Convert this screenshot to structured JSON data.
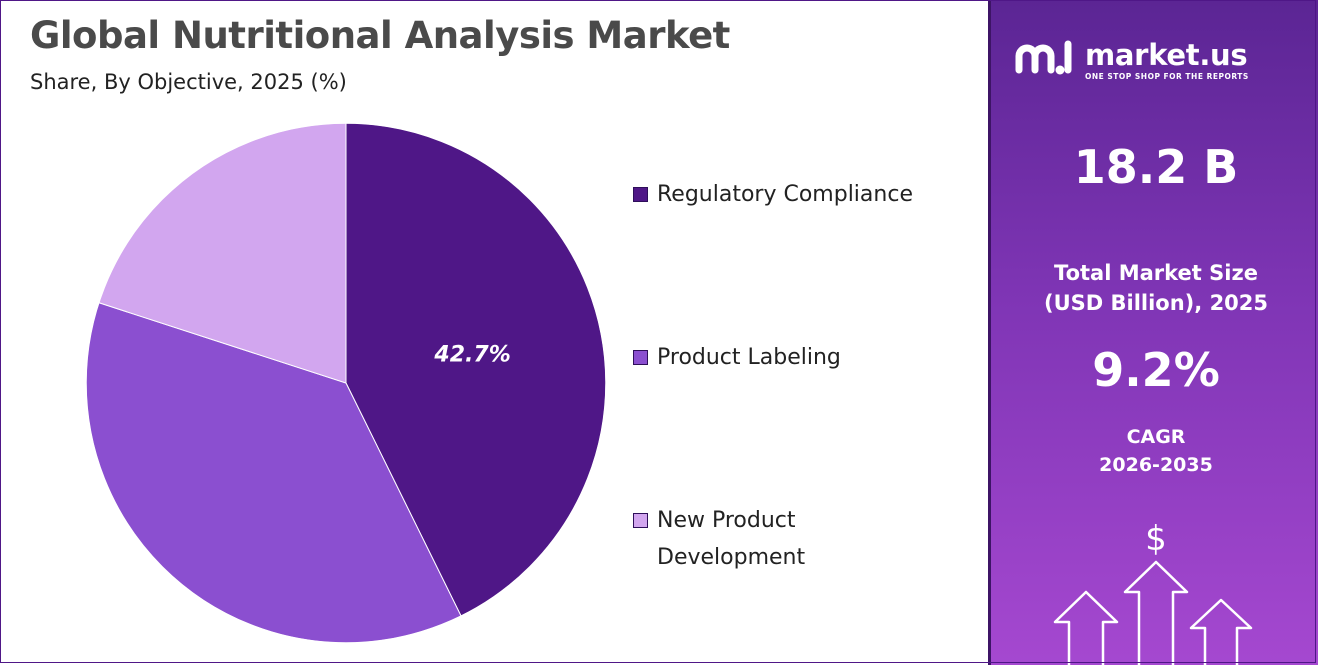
{
  "header": {
    "title": "Global Nutritional Analysis Market",
    "subtitle": "Share, By Objective, 2025 (%)"
  },
  "chart_data": {
    "type": "pie",
    "title": "Global Nutritional Analysis Market",
    "subtitle": "Share, By Objective, 2025 (%)",
    "categories": [
      "Regulatory Compliance",
      "Product Labeling",
      "New Product Development"
    ],
    "values": [
      42.7,
      37.3,
      20.0
    ],
    "colors": [
      "#4f1787",
      "#8b4fd0",
      "#d2a6ef"
    ],
    "data_labels": [
      "42.7%",
      "",
      ""
    ],
    "legend_position": "right",
    "start_angle_deg": 0,
    "direction": "clockwise"
  },
  "legend": {
    "items": [
      {
        "label": "Regulatory Compliance",
        "color": "#4f1787"
      },
      {
        "label": "Product Labeling",
        "color": "#8b4fd0"
      },
      {
        "label": "New Product Development",
        "color": "#d2a6ef"
      }
    ]
  },
  "sidebar": {
    "brand_name": "market.us",
    "brand_tagline": "ONE STOP SHOP FOR THE REPORTS",
    "market_size_value": "18.2 B",
    "market_size_label": "Total Market Size (USD Billion), 2025",
    "cagr_value": "9.2%",
    "cagr_label": "CAGR",
    "cagr_period": "2026-2035",
    "currency_symbol": "$",
    "accent_color": "#7f35b5"
  }
}
